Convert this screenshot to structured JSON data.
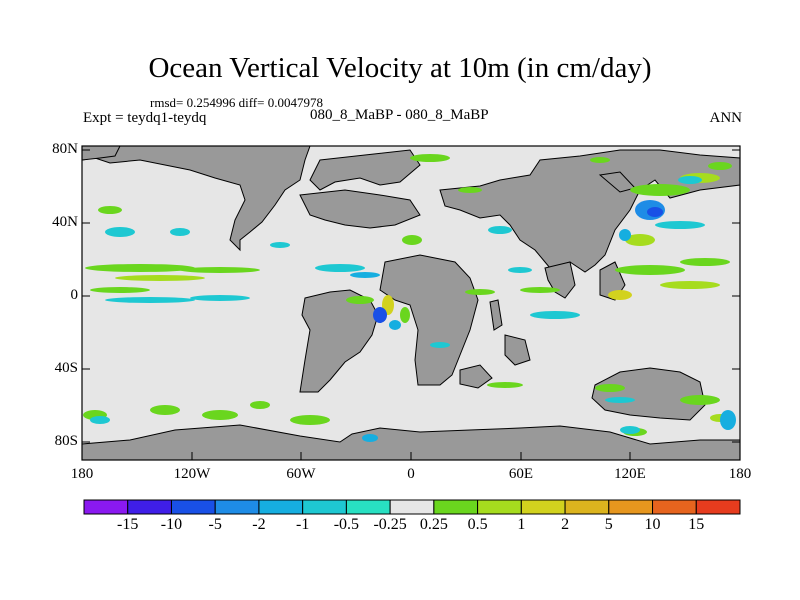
{
  "header": {
    "title": "Ocean Vertical Velocity at 10m (in cm/day)",
    "stats": "rmsd= 0.254996 diff= 0.0047978",
    "experiment": "Expt = teydq1-teydq",
    "center_label": "080_8_MaBP - 080_8_MaBP",
    "season": "ANN"
  },
  "axes": {
    "lat_ticks": [
      "80N",
      "40N",
      "0",
      "40S",
      "80S"
    ],
    "lon_ticks": [
      "180",
      "120W",
      "60W",
      "0",
      "60E",
      "120E",
      "180"
    ]
  },
  "colorbar": {
    "labels": [
      "-15",
      "-10",
      "-5",
      "-2",
      "-1",
      "-0.5",
      "-0.25",
      "0.25",
      "0.5",
      "1",
      "2",
      "5",
      "10",
      "15"
    ],
    "colors": [
      "#8a19f0",
      "#3f1ee8",
      "#1950e6",
      "#1e8ce6",
      "#16aee0",
      "#1ec8d2",
      "#28e0c2",
      "#e6e6e6",
      "#6ad61e",
      "#a6dc1e",
      "#d2d21e",
      "#dcb41e",
      "#e6961e",
      "#e6641e",
      "#e63c1e"
    ]
  },
  "map_colors": {
    "ocean": "#e6e6e6",
    "land": "#999999"
  }
}
